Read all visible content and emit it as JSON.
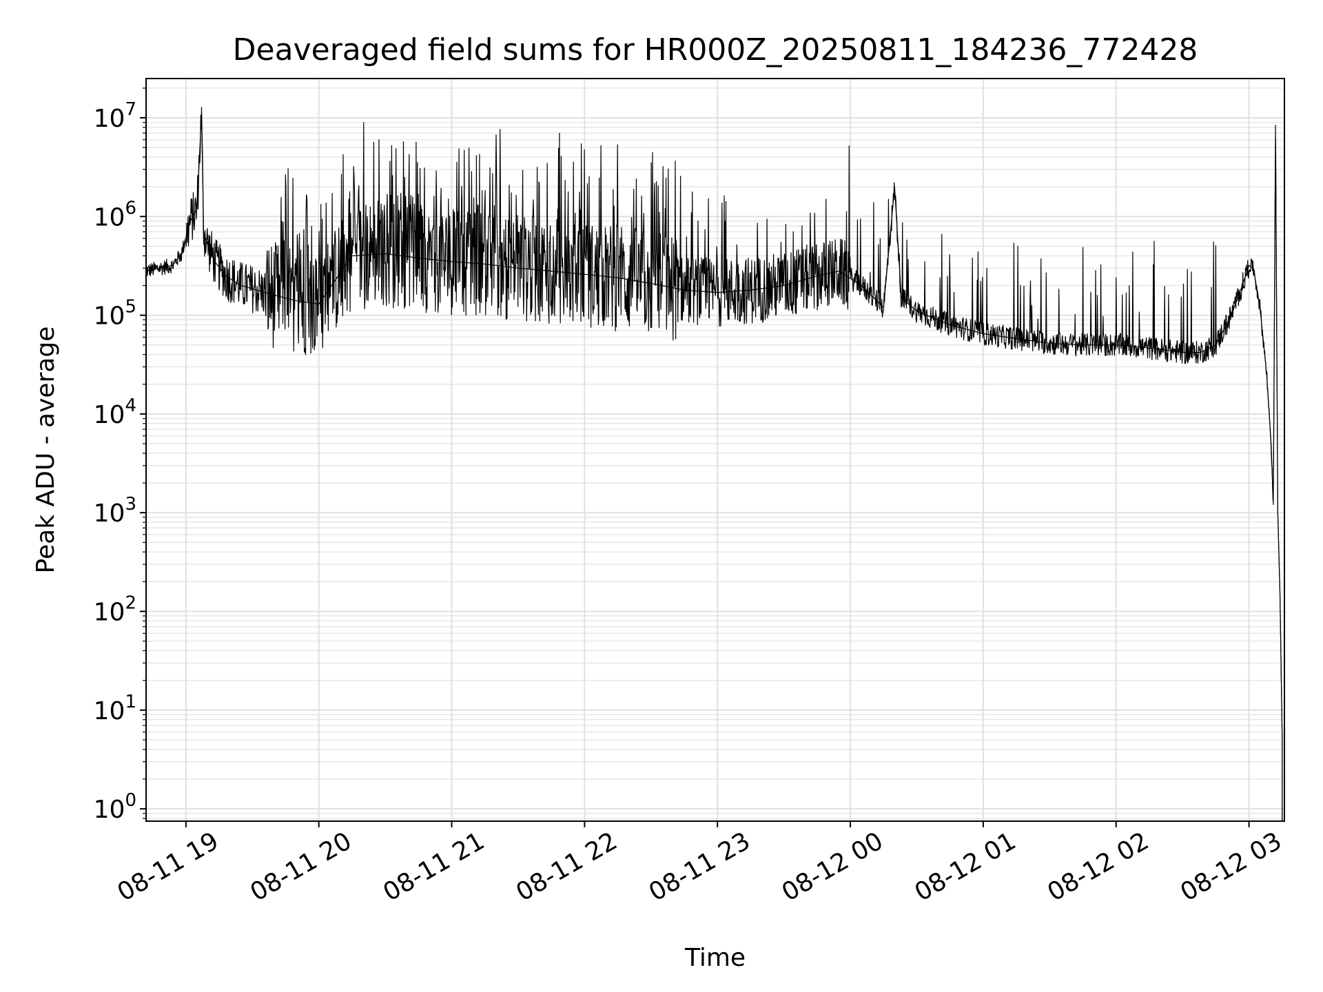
{
  "chart_data": {
    "type": "line",
    "title": "Deaveraged field sums for HR000Z_20250811_184236_772428",
    "xlabel": "Time",
    "ylabel": "Peak ADU - average",
    "y_scale": "log",
    "grid": "on (major and minor)",
    "xlim": [
      "2025-08-11 18:42",
      "2025-08-12 03:16"
    ],
    "ylim": [
      0.75,
      25000000
    ],
    "x_ticks": [
      "08-11 19",
      "08-11 20",
      "08-11 21",
      "08-11 22",
      "08-11 23",
      "08-12 00",
      "08-12 01",
      "08-12 02",
      "08-12 03"
    ],
    "x_tick_values": [
      "2025-08-11 19:00",
      "2025-08-11 20:00",
      "2025-08-11 21:00",
      "2025-08-11 22:00",
      "2025-08-11 23:00",
      "2025-08-12 00:00",
      "2025-08-12 01:00",
      "2025-08-12 02:00",
      "2025-08-12 03:00"
    ],
    "y_ticks": [
      {
        "value": 1,
        "base": "10",
        "exp": "0"
      },
      {
        "value": 10,
        "base": "10",
        "exp": "1"
      },
      {
        "value": 100,
        "base": "10",
        "exp": "2"
      },
      {
        "value": 1000,
        "base": "10",
        "exp": "3"
      },
      {
        "value": 10000,
        "base": "10",
        "exp": "4"
      },
      {
        "value": 100000,
        "base": "10",
        "exp": "5"
      },
      {
        "value": 1000000,
        "base": "10",
        "exp": "6"
      },
      {
        "value": 10000000,
        "base": "10",
        "exp": "7"
      }
    ],
    "series": [
      {
        "color": "#000000",
        "x": [
          "2025-08-11 18:42",
          "2025-08-11 18:48",
          "2025-08-11 18:54",
          "2025-08-11 18:58",
          "2025-08-11 19:02",
          "2025-08-11 19:05",
          "2025-08-11 19:07",
          "2025-08-11 19:08",
          "2025-08-11 19:10",
          "2025-08-11 19:13",
          "2025-08-11 19:18",
          "2025-08-11 19:25",
          "2025-08-11 19:32",
          "2025-08-11 19:40",
          "2025-08-11 19:50",
          "2025-08-11 20:00",
          "2025-08-11 20:15",
          "2025-08-11 20:30",
          "2025-08-11 20:45",
          "2025-08-11 21:00",
          "2025-08-11 21:15",
          "2025-08-11 21:30",
          "2025-08-11 21:45",
          "2025-08-11 22:00",
          "2025-08-11 22:15",
          "2025-08-11 22:30",
          "2025-08-11 22:45",
          "2025-08-11 23:00",
          "2025-08-11 23:15",
          "2025-08-11 23:30",
          "2025-08-11 23:45",
          "2025-08-11 23:55",
          "2025-08-12 00:05",
          "2025-08-12 00:15",
          "2025-08-12 00:20",
          "2025-08-12 00:23",
          "2025-08-12 00:30",
          "2025-08-12 00:45",
          "2025-08-12 01:00",
          "2025-08-12 01:15",
          "2025-08-12 01:30",
          "2025-08-12 01:45",
          "2025-08-12 02:00",
          "2025-08-12 02:10",
          "2025-08-12 02:20",
          "2025-08-12 02:30",
          "2025-08-12 02:38",
          "2025-08-12 02:45",
          "2025-08-12 02:52",
          "2025-08-12 02:57",
          "2025-08-12 03:00",
          "2025-08-12 03:02",
          "2025-08-12 03:05",
          "2025-08-12 03:08",
          "2025-08-12 03:10",
          "2025-08-12 03:11",
          "2025-08-12 03:12",
          "2025-08-12 03:13",
          "2025-08-12 03:14",
          "2025-08-12 03:15"
        ],
        "y": [
          280000,
          300000,
          320000,
          420000,
          900000,
          1200000,
          11000000,
          700000,
          500000,
          350000,
          250000,
          200000,
          180000,
          160000,
          140000,
          130000,
          400000,
          420000,
          380000,
          350000,
          330000,
          300000,
          280000,
          260000,
          240000,
          210000,
          180000,
          170000,
          180000,
          200000,
          250000,
          280000,
          200000,
          120000,
          2000000,
          150000,
          110000,
          80000,
          65000,
          58000,
          52000,
          50000,
          50000,
          48000,
          45000,
          42000,
          42000,
          50000,
          100000,
          200000,
          320000,
          300000,
          120000,
          25000,
          5000,
          1200,
          8500000,
          1000,
          150,
          5
        ]
      }
    ]
  }
}
